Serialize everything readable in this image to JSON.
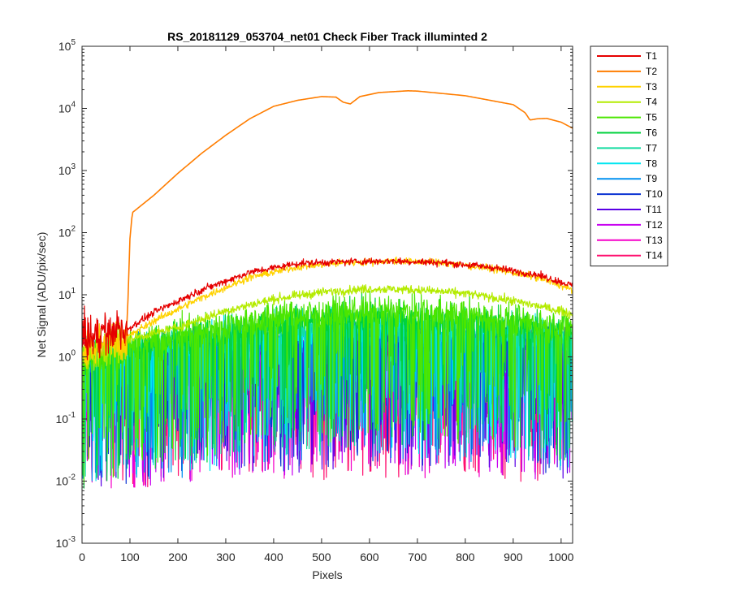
{
  "chart_data": {
    "type": "line",
    "title": "RS_20181129_053704_net01   Check Fiber     Track illuminted 2",
    "xlabel": "Pixels",
    "ylabel": "Net Signal (ADU/pix/sec)",
    "xlim": [
      0,
      1024
    ],
    "ylim": [
      0.001,
      100000
    ],
    "yscale": "log",
    "x_ticks": [
      "0",
      "100",
      "200",
      "300",
      "400",
      "500",
      "600",
      "700",
      "800",
      "900",
      "1000"
    ],
    "y_ticks": [
      {
        "base": "10",
        "exp": "-3"
      },
      {
        "base": "10",
        "exp": "-2"
      },
      {
        "base": "10",
        "exp": "-1"
      },
      {
        "base": "10",
        "exp": "0"
      },
      {
        "base": "10",
        "exp": "1"
      },
      {
        "base": "10",
        "exp": "2"
      },
      {
        "base": "10",
        "exp": "3"
      },
      {
        "base": "10",
        "exp": "4"
      },
      {
        "base": "10",
        "exp": "5"
      }
    ],
    "grid": false,
    "legend": "outside-top-right",
    "series": [
      {
        "name": "T1",
        "color": "#e60000",
        "x": [
          0,
          50,
          95,
          150,
          250,
          350,
          450,
          550,
          650,
          750,
          850,
          950,
          1024
        ],
        "y": [
          1.8,
          2.4,
          2.8,
          5.2,
          12,
          23,
          32,
          34,
          35,
          33,
          28,
          21,
          14
        ]
      },
      {
        "name": "T2",
        "color": "#ff7d00",
        "x": [
          90,
          95,
          100,
          105,
          150,
          200,
          250,
          300,
          350,
          400,
          450,
          500,
          530,
          545,
          560,
          580,
          620,
          680,
          700,
          800,
          900,
          925,
          935,
          950,
          970,
          1000,
          1024
        ],
        "y": [
          1.5,
          5,
          80,
          210,
          400,
          900,
          1900,
          3700,
          6800,
          10800,
          13500,
          15500,
          15200,
          12600,
          11800,
          15500,
          18000,
          19200,
          19000,
          16000,
          11500,
          8500,
          6500,
          6800,
          6900,
          6000,
          4800
        ]
      },
      {
        "name": "T3",
        "color": "#ffd200",
        "x": [
          0,
          95,
          150,
          250,
          350,
          450,
          550,
          650,
          750,
          850,
          950,
          1024
        ],
        "y": [
          1.2,
          2.1,
          3.8,
          9,
          19,
          28,
          33,
          35,
          33,
          27,
          19,
          12
        ]
      },
      {
        "name": "T4",
        "color": "#b4eb00",
        "x": [
          0,
          95,
          200,
          300,
          400,
          500,
          600,
          700,
          800,
          900,
          1000,
          1024
        ],
        "y": [
          1.0,
          1.9,
          3.0,
          5.5,
          8.5,
          11,
          12.5,
          12,
          10.5,
          8,
          5.5,
          4.8
        ]
      },
      {
        "name": "T5",
        "color": "#4be600",
        "x": [
          0,
          200,
          400,
          600,
          800,
          1000,
          1024
        ],
        "y": [
          1.0,
          2.4,
          4.6,
          5.6,
          5.0,
          3.3,
          3.0
        ]
      },
      {
        "name": "T6",
        "color": "#00d23c",
        "x": [
          0,
          200,
          400,
          600,
          800,
          1000,
          1024
        ],
        "y": [
          0.9,
          2.0,
          3.7,
          4.7,
          4.2,
          2.7,
          2.5
        ]
      },
      {
        "name": "T7",
        "color": "#14dca0",
        "x": [
          0,
          200,
          400,
          600,
          800,
          1000,
          1024
        ],
        "y": [
          0.9,
          1.8,
          3.0,
          3.6,
          3.3,
          2.3,
          2.1
        ]
      },
      {
        "name": "T8",
        "color": "#00e6f0",
        "x": [
          0,
          200,
          400,
          600,
          800,
          1000,
          1024
        ],
        "y": [
          0.9,
          1.6,
          2.5,
          3.0,
          2.8,
          2.0,
          1.9
        ]
      },
      {
        "name": "T9",
        "color": "#0091f0",
        "x": [
          0,
          200,
          400,
          600,
          800,
          1000,
          1024
        ],
        "y": [
          0.9,
          1.4,
          2.1,
          2.5,
          2.3,
          1.8,
          1.7
        ]
      },
      {
        "name": "T10",
        "color": "#0a32d2",
        "x": [
          0,
          200,
          400,
          600,
          800,
          1000,
          1024
        ],
        "y": [
          0.9,
          1.3,
          1.8,
          2.1,
          2.0,
          1.6,
          1.5
        ]
      },
      {
        "name": "T11",
        "color": "#5a00e6",
        "x": [
          0,
          200,
          400,
          600,
          800,
          1000,
          1024
        ],
        "y": [
          0.9,
          1.2,
          1.6,
          1.8,
          1.7,
          1.4,
          1.4
        ]
      },
      {
        "name": "T12",
        "color": "#c800f0",
        "x": [
          0,
          200,
          400,
          600,
          800,
          1000,
          1024
        ],
        "y": [
          0.9,
          1.1,
          1.4,
          1.6,
          1.5,
          1.3,
          1.3
        ]
      },
      {
        "name": "T13",
        "color": "#f500c8",
        "x": [
          0,
          200,
          400,
          600,
          800,
          1000,
          1024
        ],
        "y": [
          0.85,
          1.05,
          1.3,
          1.45,
          1.4,
          1.2,
          1.2
        ]
      },
      {
        "name": "T14",
        "color": "#ff0f6e",
        "x": [
          0,
          200,
          400,
          600,
          800,
          1000,
          1024
        ],
        "y": [
          0.85,
          1.0,
          1.2,
          1.35,
          1.3,
          1.15,
          1.1
        ]
      }
    ]
  }
}
